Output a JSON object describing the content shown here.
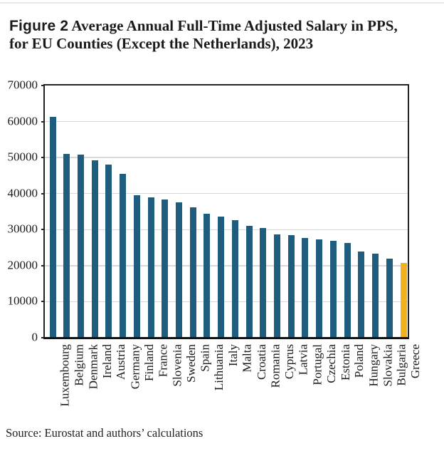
{
  "figure": {
    "label": "Figure 2",
    "title": "Average Annual Full-Time Adjusted Salary in PPS, for EU Counties (Except the Netherlands), 2023"
  },
  "source_note": "Source: Eurostat and authors’ calculations",
  "chart_data": {
    "type": "bar",
    "title": "Figure 2 Average Annual Full-Time Adjusted Salary in PPS, for EU Counties (Except the Netherlands), 2023",
    "xlabel": "",
    "ylabel": "",
    "unit": "PPS",
    "ylim": [
      0,
      70000
    ],
    "ytick_step": 10000,
    "ytick_labels": [
      "0",
      "10000",
      "20000",
      "30000",
      "40000",
      "50000",
      "60000",
      "70000"
    ],
    "grid": true,
    "legend": "none",
    "categories": [
      "Luxembourg",
      "Belgium",
      "Denmark",
      "Ireland",
      "Austria",
      "Germany",
      "Finland",
      "France",
      "Slovenia",
      "Sweden",
      "Spain",
      "Lithuania",
      "Italy",
      "Malta",
      "Croatia",
      "Romania",
      "Cyprus",
      "Latvia",
      "Portugal",
      "Czechia",
      "Estonia",
      "Poland",
      "Hungary",
      "Slovakia",
      "Bulgaria",
      "Greece"
    ],
    "values": [
      61400,
      51100,
      50900,
      49300,
      48000,
      45500,
      39600,
      39000,
      38400,
      37600,
      36100,
      34500,
      33600,
      32600,
      31000,
      30500,
      28700,
      28400,
      27600,
      27300,
      26800,
      26300,
      24000,
      23300,
      22000,
      20800
    ],
    "bar_color": "#1F5D7E",
    "highlight_category": "Greece",
    "highlight_color": "#F2B11D",
    "gridline_color": "#D9D9D9",
    "frame_color": "#232323"
  }
}
